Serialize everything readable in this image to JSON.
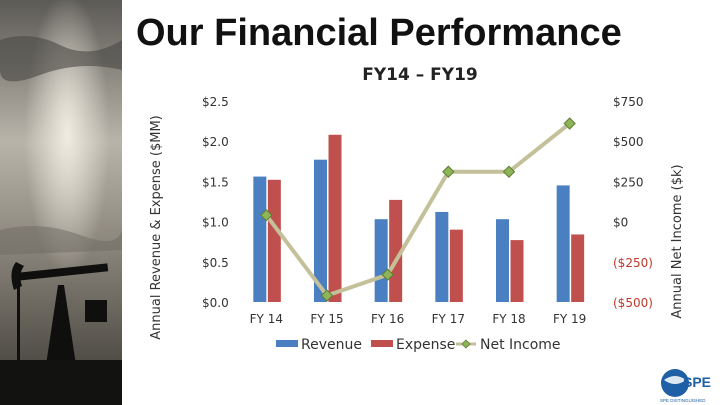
{
  "slide": {
    "title": "Our Financial Performance",
    "logo_text": "SPE",
    "logo_tagline": "SPE DISTINGUISHED"
  },
  "chart_data": {
    "type": "bar",
    "title": "FY14 – FY19",
    "categories": [
      "FY 14",
      "FY 15",
      "FY 16",
      "FY 17",
      "FY 18",
      "FY 19"
    ],
    "series": [
      {
        "name": "Revenue",
        "type": "bar",
        "axis": "left",
        "color": "#4a7fc1",
        "values": [
          1.56,
          1.77,
          1.03,
          1.12,
          1.03,
          1.45
        ]
      },
      {
        "name": "Expense",
        "type": "bar",
        "axis": "left",
        "color": "#c0504d",
        "values": [
          1.52,
          2.08,
          1.27,
          0.9,
          0.77,
          0.84
        ]
      },
      {
        "name": "Net Income",
        "type": "line",
        "axis": "right",
        "color": "#c4c09a",
        "marker_color": "#8db457",
        "values": [
          40,
          -460,
          -330,
          310,
          310,
          610
        ]
      }
    ],
    "y_left": {
      "label": "Annual Revenue & Expense ($MM)",
      "min": 0,
      "max": 2.5,
      "ticks": [
        0,
        0.5,
        1.0,
        1.5,
        2.0,
        2.5
      ],
      "tick_labels": [
        "$0.0",
        "$0.5",
        "$1.0",
        "$1.5",
        "$2.0",
        "$2.5"
      ]
    },
    "y_right": {
      "label": "Annual Net Income ($k)",
      "min": -500,
      "max": 750,
      "ticks": [
        -500,
        -250,
        0,
        250,
        500,
        750
      ],
      "tick_labels": [
        "($500)",
        "($250)",
        "$0",
        "$250",
        "$500",
        "$750"
      ]
    },
    "grid": false,
    "legend": "bottom"
  }
}
